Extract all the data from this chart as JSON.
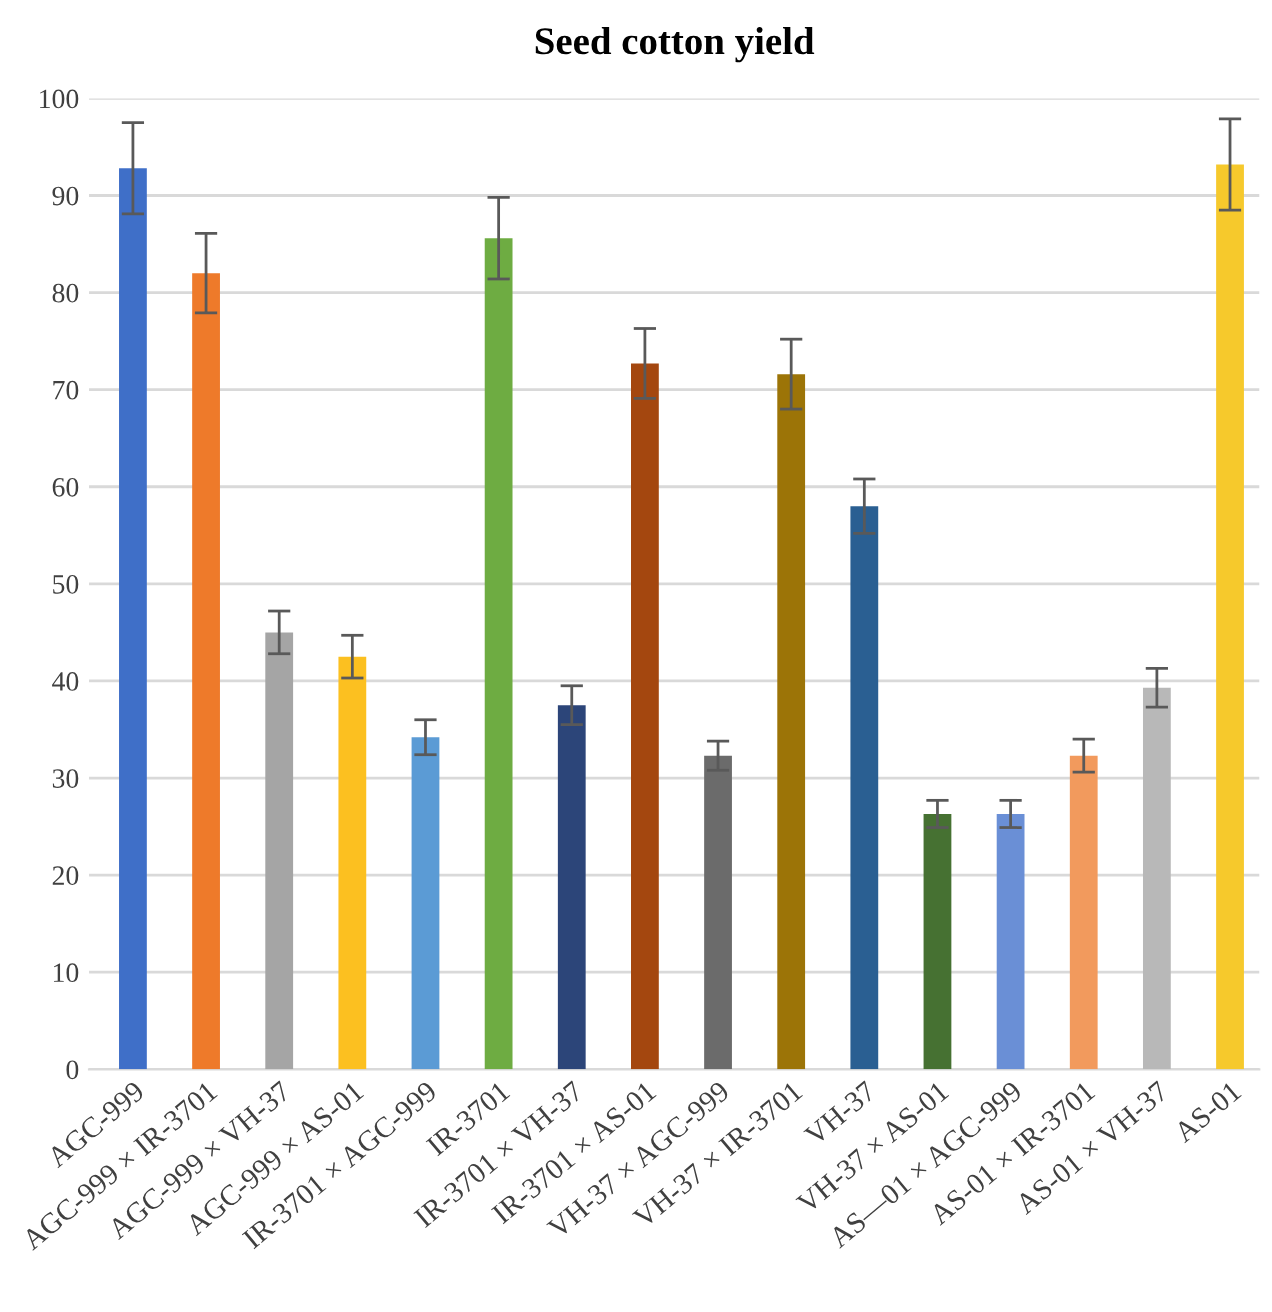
{
  "chart_data": {
    "type": "bar",
    "title": "Seed cotton yield",
    "categories": [
      "AGC-999",
      "AGC-999 × IR-3701",
      "AGC-999 × VH-37",
      "AGC-999 × AS-01",
      "IR-3701 × AGC-999",
      "IR-3701",
      "IR-3701 × VH-37",
      "IR-3701 × AS-01",
      "VH-37 × AGC-999",
      "VH-37 × IR-3701",
      "VH-37",
      "VH-37 × AS-01",
      "AS—01 × AGC-999",
      "AS-01 × IR-3701",
      "AS-01 × VH-37",
      "AS-01"
    ],
    "values": [
      92.8,
      82,
      45,
      42.5,
      34.2,
      85.6,
      37.5,
      72.7,
      32.3,
      71.6,
      58,
      26.3,
      26.3,
      32.3,
      39.3,
      93.2
    ],
    "errors": [
      4.7,
      4.1,
      2.2,
      2.2,
      1.8,
      4.2,
      2,
      3.6,
      1.5,
      3.6,
      2.8,
      1.4,
      1.4,
      1.7,
      2,
      4.7
    ],
    "colors": [
      "#3f6fc8",
      "#ee7a2a",
      "#a5a5a5",
      "#fcc020",
      "#5b9bd5",
      "#6eac42",
      "#2c4579",
      "#a4470f",
      "#6b6b6b",
      "#9c7407",
      "#2a5f92",
      "#467132",
      "#6a8fd6",
      "#f29a5d",
      "#b8b8b8",
      "#f6c92c"
    ],
    "ylim": [
      0,
      100
    ],
    "yticks": [
      0,
      10,
      20,
      30,
      40,
      50,
      60,
      70,
      80,
      90,
      100
    ],
    "grid": "y"
  }
}
